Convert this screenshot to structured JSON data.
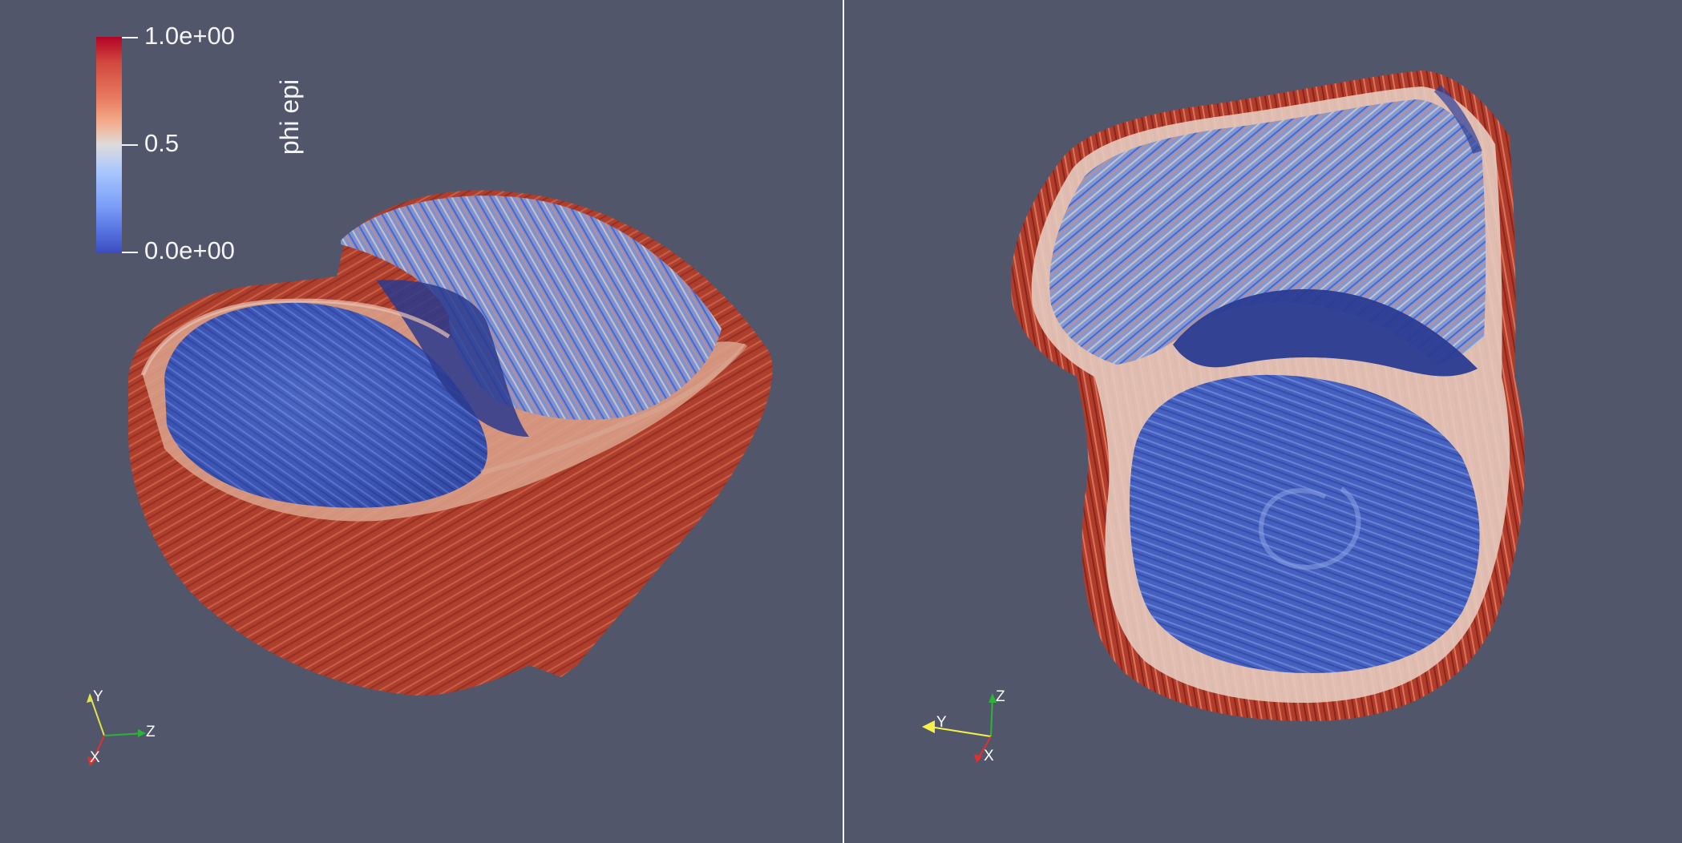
{
  "legend": {
    "title": "phi epi",
    "max_label": "1.0e+00",
    "mid_label": "0.5",
    "min_label": "0.0e+00",
    "colormap": [
      "#3b4cc0",
      "#5572df",
      "#7b9ff9",
      "#aac7fd",
      "#dddcdc",
      "#f4ae8e",
      "#e8795f",
      "#d1493f",
      "#b40426"
    ],
    "range": [
      0,
      1
    ]
  },
  "views": [
    {
      "name": "left-view",
      "axes": {
        "labels": [
          "Y",
          "Z",
          "X"
        ]
      }
    },
    {
      "name": "right-view",
      "axes": {
        "labels": [
          "Z",
          "Y",
          "X"
        ]
      }
    }
  ],
  "colors": {
    "background": "#52566b",
    "divider": "#f4f4f4",
    "axis_y_left": "#e2e24a",
    "axis_z_left": "#2fb23a",
    "axis_x": "#e22f2f",
    "axis_y_right": "#f5f04a",
    "axis_z_right": "#2fb23a"
  }
}
